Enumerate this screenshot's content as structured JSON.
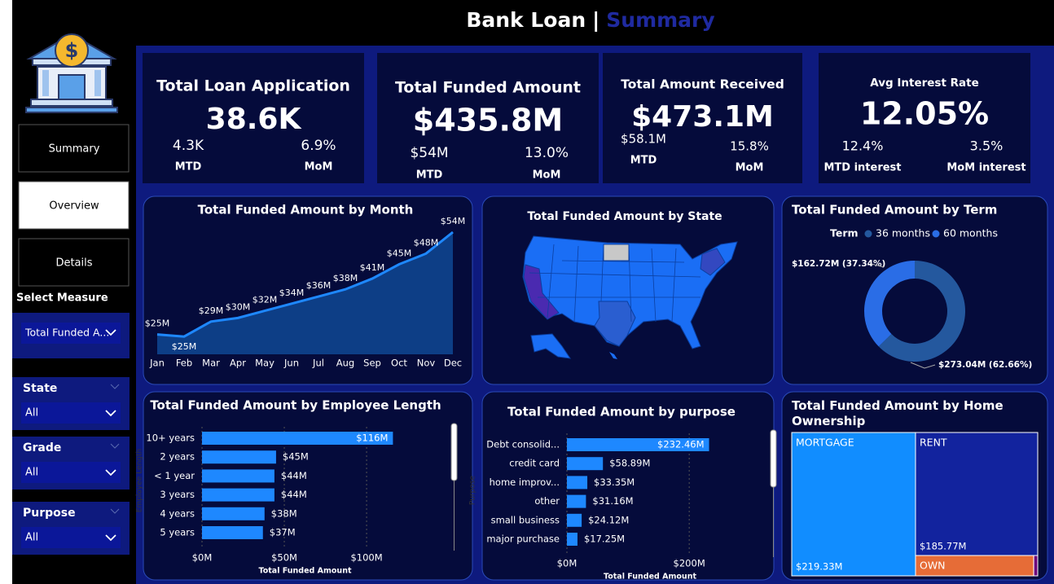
{
  "header": {
    "title": "Bank Loan",
    "separator": "|",
    "subtitle": "Summary"
  },
  "sidebar": {
    "nav": [
      "Summary",
      "Overview",
      "Details"
    ],
    "active": 1,
    "select_measure": {
      "label": "Select Measure",
      "value": "Total Funded A..."
    },
    "filters": [
      {
        "label": "State",
        "value": "All"
      },
      {
        "label": "Grade",
        "value": "All"
      },
      {
        "label": "Purpose",
        "value": "All"
      }
    ]
  },
  "kpis": [
    {
      "title": "Total Loan Application",
      "value": "38.6K",
      "left": {
        "value": "4.3K",
        "label": "MTD"
      },
      "right": {
        "value": "6.9%",
        "label": "MoM"
      }
    },
    {
      "title": "Total Funded Amount",
      "value": "$435.8M",
      "left": {
        "value": "$54M",
        "label": "MTD"
      },
      "right": {
        "value": "13.0%",
        "label": "MoM"
      }
    },
    {
      "title": "Total Amount Received",
      "value": "$473.1M",
      "left": {
        "value": "$58.1M",
        "label": "MTD"
      },
      "right": {
        "value": "15.8%",
        "label": "MoM"
      }
    },
    {
      "title": "Avg Interest Rate",
      "value": "12.05%",
      "left": {
        "value": "12.4%",
        "label": "MTD interest"
      },
      "right": {
        "value": "3.5%",
        "label": "MoM interest"
      }
    }
  ],
  "charts": {
    "month": {
      "type": "area",
      "title": "Total Funded Amount by Month",
      "color": "#1e88ff",
      "categories": [
        "Jan",
        "Feb",
        "Mar",
        "Apr",
        "May",
        "Jun",
        "Jul",
        "Aug",
        "Sep",
        "Oct",
        "Nov",
        "Dec"
      ],
      "values": [
        25.4,
        24.8,
        29,
        30,
        32,
        34,
        36,
        38,
        41,
        45,
        48,
        54
      ],
      "value_labels": [
        "$25M",
        "$25M",
        "$29M",
        "$30M",
        "$32M",
        "$34M",
        "$36M",
        "$38M",
        "$41M",
        "$45M",
        "$48M",
        "$54M"
      ]
    },
    "state": {
      "type": "map",
      "title": "Total Funded Amount by State"
    },
    "term": {
      "type": "donut",
      "title": "Total Funded Amount by Term",
      "legend_title": "Term",
      "categories": [
        "36 months",
        "60 months"
      ],
      "colors": [
        "#24589e",
        "#2a6de6"
      ],
      "values": [
        273.04,
        162.72
      ],
      "value_labels": [
        "$273.04M (62.66%)",
        "$162.72M (37.34%)"
      ]
    },
    "employee_length": {
      "type": "hbar",
      "title": "Total Funded Amount by Employee Length",
      "color": "#1e88ff",
      "xlabel": "Total Funded Amount",
      "ylabel": "Employee Length",
      "categories": [
        "10+ years",
        "2 years",
        "< 1 year",
        "3 years",
        "4 years",
        "5 years"
      ],
      "values": [
        116,
        45,
        44,
        44,
        38,
        37
      ],
      "value_labels": [
        "$116M",
        "$45M",
        "$44M",
        "$44M",
        "$38M",
        "$37M"
      ],
      "xlim": [
        0,
        145
      ],
      "xticks": [
        {
          "value": 0,
          "label": "$0M"
        },
        {
          "value": 50,
          "label": "$50M"
        },
        {
          "value": 100,
          "label": "$100M"
        }
      ]
    },
    "purpose": {
      "type": "hbar",
      "title": "Total Funded Amount by purpose",
      "color": "#1e88ff",
      "xlabel": "Total Funded Amount",
      "ylabel": "Purpose",
      "categories": [
        "Debt consolid...",
        "credit card",
        "home improv...",
        "other",
        "small business",
        "major purchase"
      ],
      "values": [
        232.46,
        58.89,
        33.35,
        31.16,
        24.12,
        17.25
      ],
      "value_labels": [
        "$232.46M",
        "$58.89M",
        "$33.35M",
        "$31.16M",
        "$24.12M",
        "$17.25M"
      ],
      "xlim": [
        0,
        325
      ],
      "xticks": [
        {
          "value": 0,
          "label": "$0M"
        },
        {
          "value": 200,
          "label": "$200M"
        }
      ]
    },
    "home_ownership": {
      "type": "treemap",
      "title": "Total Funded Amount by Home Ownership",
      "categories": [
        "MORTGAGE",
        "RENT",
        "OWN",
        null
      ],
      "colors": [
        "#118dff",
        "#12239e",
        "#e66c37",
        "#6b007b"
      ],
      "values": [
        219.33,
        185.77,
        29.7,
        1.0
      ],
      "value_labels": [
        "$219.33M",
        "$185.77M",
        null,
        null
      ]
    }
  }
}
